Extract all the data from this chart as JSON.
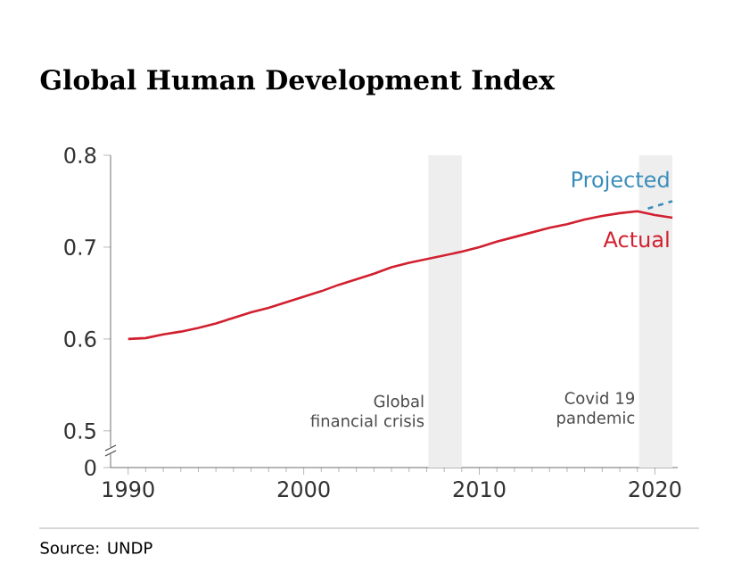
{
  "chart_data": {
    "type": "line",
    "title": "Global Human Development Index",
    "x": [
      1990,
      1991,
      1992,
      1993,
      1994,
      1995,
      1996,
      1997,
      1998,
      1999,
      2000,
      2001,
      2002,
      2003,
      2004,
      2005,
      2006,
      2007,
      2008,
      2009,
      2010,
      2011,
      2012,
      2013,
      2014,
      2015,
      2016,
      2017,
      2018,
      2019,
      2020,
      2021
    ],
    "xlim": [
      1989,
      2021.3
    ],
    "xticks": [
      1990,
      2000,
      2010,
      2020
    ],
    "ylim": [
      0.46,
      0.8
    ],
    "yticks": [
      {
        "value": 0.46,
        "label": "0"
      },
      0.5,
      0.6,
      0.7,
      0.8
    ],
    "series": [
      {
        "name": "Actual",
        "color": "#d1202f",
        "line_style": "solid",
        "values": [
          0.6,
          0.601,
          0.605,
          0.608,
          0.612,
          0.617,
          0.623,
          0.629,
          0.634,
          0.64,
          0.646,
          0.652,
          0.659,
          0.665,
          0.671,
          0.678,
          0.683,
          0.687,
          0.691,
          0.695,
          0.7,
          0.706,
          0.711,
          0.716,
          0.721,
          0.725,
          0.73,
          0.734,
          0.737,
          0.739,
          0.735,
          0.732
        ]
      },
      {
        "name": "Projected",
        "color": "#3a8dbb",
        "line_style": "dashed",
        "x": [
          2019.6,
          2021
        ],
        "values": [
          0.742,
          0.75
        ]
      }
    ],
    "bands": [
      {
        "axis": "x",
        "from": 2007.1,
        "to": 2009.0,
        "label": "Global financial crisis",
        "color": "#eeeeee"
      },
      {
        "axis": "x",
        "from": 2019.1,
        "to": 2021.0,
        "label": "Covid 19 pandemic",
        "color": "#eeeeee"
      }
    ],
    "annotations": [
      "Source: UNDP"
    ],
    "legend": false,
    "grid": false,
    "marker": "none"
  }
}
